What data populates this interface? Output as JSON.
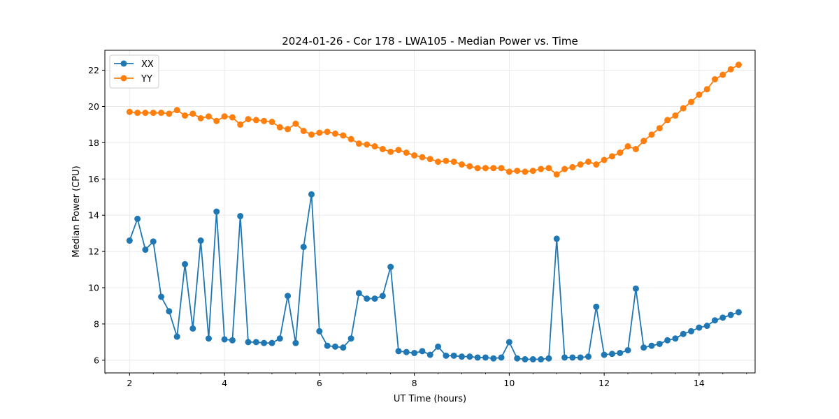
{
  "chart_data": {
    "type": "line",
    "title": "2024-01-26 - Cor 178 - LWA105 - Median Power vs. Time",
    "xlabel": "UT Time (hours)",
    "ylabel": "Median Power (CPU)",
    "xlim": [
      1.48,
      15.18
    ],
    "ylim": [
      5.3,
      23.1
    ],
    "xticks": [
      2,
      4,
      6,
      8,
      10,
      12,
      14
    ],
    "yticks": [
      6,
      8,
      10,
      12,
      14,
      16,
      18,
      20,
      22
    ],
    "grid": true,
    "legend_position": "top-left",
    "x": [
      2.0,
      2.167,
      2.333,
      2.5,
      2.667,
      2.833,
      3.0,
      3.167,
      3.333,
      3.5,
      3.667,
      3.833,
      4.0,
      4.167,
      4.333,
      4.5,
      4.667,
      4.833,
      5.0,
      5.167,
      5.333,
      5.5,
      5.667,
      5.833,
      6.0,
      6.167,
      6.333,
      6.5,
      6.667,
      6.833,
      7.0,
      7.167,
      7.333,
      7.5,
      7.667,
      7.833,
      8.0,
      8.167,
      8.333,
      8.5,
      8.667,
      8.833,
      9.0,
      9.167,
      9.333,
      9.5,
      9.667,
      9.833,
      10.0,
      10.167,
      10.333,
      10.5,
      10.667,
      10.833,
      11.0,
      11.167,
      11.333,
      11.5,
      11.667,
      11.833,
      12.0,
      12.167,
      12.333,
      12.5,
      12.667,
      12.833,
      13.0,
      13.167,
      13.333,
      13.5,
      13.667,
      13.833,
      14.0,
      14.167,
      14.333,
      14.5,
      14.667,
      14.833
    ],
    "series": [
      {
        "name": "XX",
        "color": "#1f77b4",
        "values": [
          12.6,
          13.8,
          12.1,
          12.55,
          9.5,
          8.7,
          7.3,
          11.3,
          7.75,
          12.6,
          7.2,
          14.2,
          7.15,
          7.1,
          13.95,
          7.0,
          7.0,
          6.95,
          6.95,
          7.2,
          9.55,
          6.95,
          12.25,
          15.15,
          7.6,
          6.8,
          6.75,
          6.7,
          7.2,
          9.7,
          9.4,
          9.4,
          9.55,
          11.15,
          6.5,
          6.45,
          6.4,
          6.5,
          6.3,
          6.75,
          6.25,
          6.25,
          6.2,
          6.2,
          6.15,
          6.15,
          6.1,
          6.15,
          7.0,
          6.1,
          6.05,
          6.05,
          6.05,
          6.1,
          12.7,
          6.15,
          6.15,
          6.15,
          6.2,
          8.95,
          6.3,
          6.35,
          6.4,
          6.55,
          9.95,
          6.7,
          6.8,
          6.9,
          7.1,
          7.2,
          7.45,
          7.6,
          7.8,
          7.9,
          8.2,
          8.35,
          8.5,
          8.65
        ]
      },
      {
        "name": "YY",
        "color": "#ff7f0e",
        "values": [
          19.7,
          19.65,
          19.65,
          19.65,
          19.65,
          19.6,
          19.8,
          19.5,
          19.6,
          19.35,
          19.45,
          19.2,
          19.45,
          19.4,
          19.0,
          19.3,
          19.25,
          19.2,
          19.15,
          18.85,
          18.75,
          19.05,
          18.65,
          18.45,
          18.55,
          18.6,
          18.5,
          18.4,
          18.2,
          17.95,
          17.9,
          17.8,
          17.65,
          17.5,
          17.6,
          17.45,
          17.3,
          17.2,
          17.1,
          16.95,
          17.0,
          16.95,
          16.8,
          16.7,
          16.6,
          16.6,
          16.6,
          16.6,
          16.4,
          16.45,
          16.4,
          16.45,
          16.55,
          16.6,
          16.25,
          16.55,
          16.65,
          16.8,
          16.95,
          16.8,
          17.05,
          17.25,
          17.45,
          17.8,
          17.65,
          18.1,
          18.45,
          18.8,
          19.25,
          19.5,
          19.9,
          20.25,
          20.65,
          20.95,
          21.5,
          21.75,
          22.05,
          22.3
        ]
      }
    ]
  }
}
